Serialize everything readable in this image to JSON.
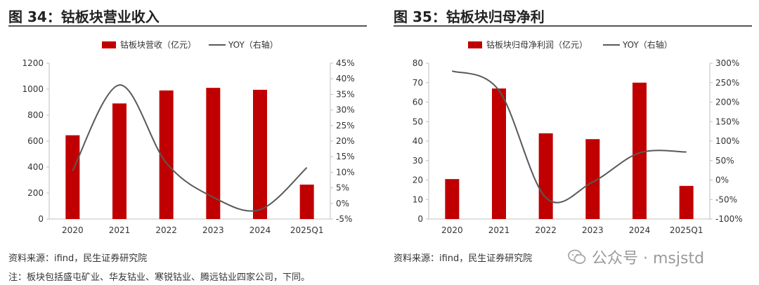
{
  "figures": [
    {
      "title": "图 34：钴板块营业收入",
      "source": "资料来源：ifind，民生证券研究院"
    },
    {
      "title": "图 35：钴板块归母净利",
      "source": "资料来源：ifind，民生证券研究院"
    }
  ],
  "footnote": "注：板块包括盛屯矿业、华友钴业、寒锐钴业、腾远钴业四家公司，下同。",
  "watermark": {
    "text": "公众号 · msjstd",
    "icon": "wechat-icon"
  },
  "colors": {
    "bar": "#c00000",
    "line": "#595959",
    "axis": "#bfbfbf",
    "title_rule": "#555555"
  },
  "chart_data": [
    {
      "type": "bar+line",
      "categories": [
        "2020",
        "2021",
        "2022",
        "2023",
        "2024",
        "2025Q1"
      ],
      "series": [
        {
          "name": "钴板块营收（亿元）",
          "type": "bar",
          "axis": "left",
          "values": [
            645,
            890,
            990,
            1010,
            995,
            265
          ]
        },
        {
          "name": "YOY（右轴）",
          "type": "line",
          "axis": "right",
          "smooth": true,
          "values": [
            10.5,
            38,
            13,
            2,
            -2,
            11.5
          ]
        }
      ],
      "ylim_left": [
        0,
        1200
      ],
      "yticks_left": [
        0,
        200,
        400,
        600,
        800,
        1000,
        1200
      ],
      "yticklabels_left": [
        "0",
        "200",
        "400",
        "600",
        "800",
        "1000",
        "1200"
      ],
      "ylim_right": [
        -5,
        45
      ],
      "yticks_right": [
        -5,
        0,
        5,
        10,
        15,
        20,
        25,
        30,
        35,
        40,
        45
      ],
      "yticklabels_right": [
        "-5%",
        "0%",
        "5%",
        "10%",
        "15%",
        "20%",
        "25%",
        "30%",
        "35%",
        "40%",
        "45%"
      ],
      "grid": false,
      "legend_position": "top"
    },
    {
      "type": "bar+line",
      "categories": [
        "2020",
        "2021",
        "2022",
        "2023",
        "2024",
        "2025Q1"
      ],
      "series": [
        {
          "name": "钴板块归母净利润（亿元）",
          "type": "bar",
          "axis": "left",
          "values": [
            20.5,
            67,
            44,
            41,
            70,
            17
          ]
        },
        {
          "name": "YOY（右轴）",
          "type": "line",
          "axis": "right",
          "smooth": true,
          "values": [
            280,
            230,
            -45,
            -5,
            70,
            72
          ]
        }
      ],
      "ylim_left": [
        0,
        80
      ],
      "yticks_left": [
        0,
        10,
        20,
        30,
        40,
        50,
        60,
        70,
        80
      ],
      "yticklabels_left": [
        "0",
        "10",
        "20",
        "30",
        "40",
        "50",
        "60",
        "70",
        "80"
      ],
      "ylim_right": [
        -100,
        300
      ],
      "yticks_right": [
        -100,
        -50,
        0,
        50,
        100,
        150,
        200,
        250,
        300
      ],
      "yticklabels_right": [
        "-100%",
        "-50%",
        "0%",
        "50%",
        "100%",
        "150%",
        "200%",
        "250%",
        "300%"
      ],
      "grid": false,
      "legend_position": "top"
    }
  ]
}
